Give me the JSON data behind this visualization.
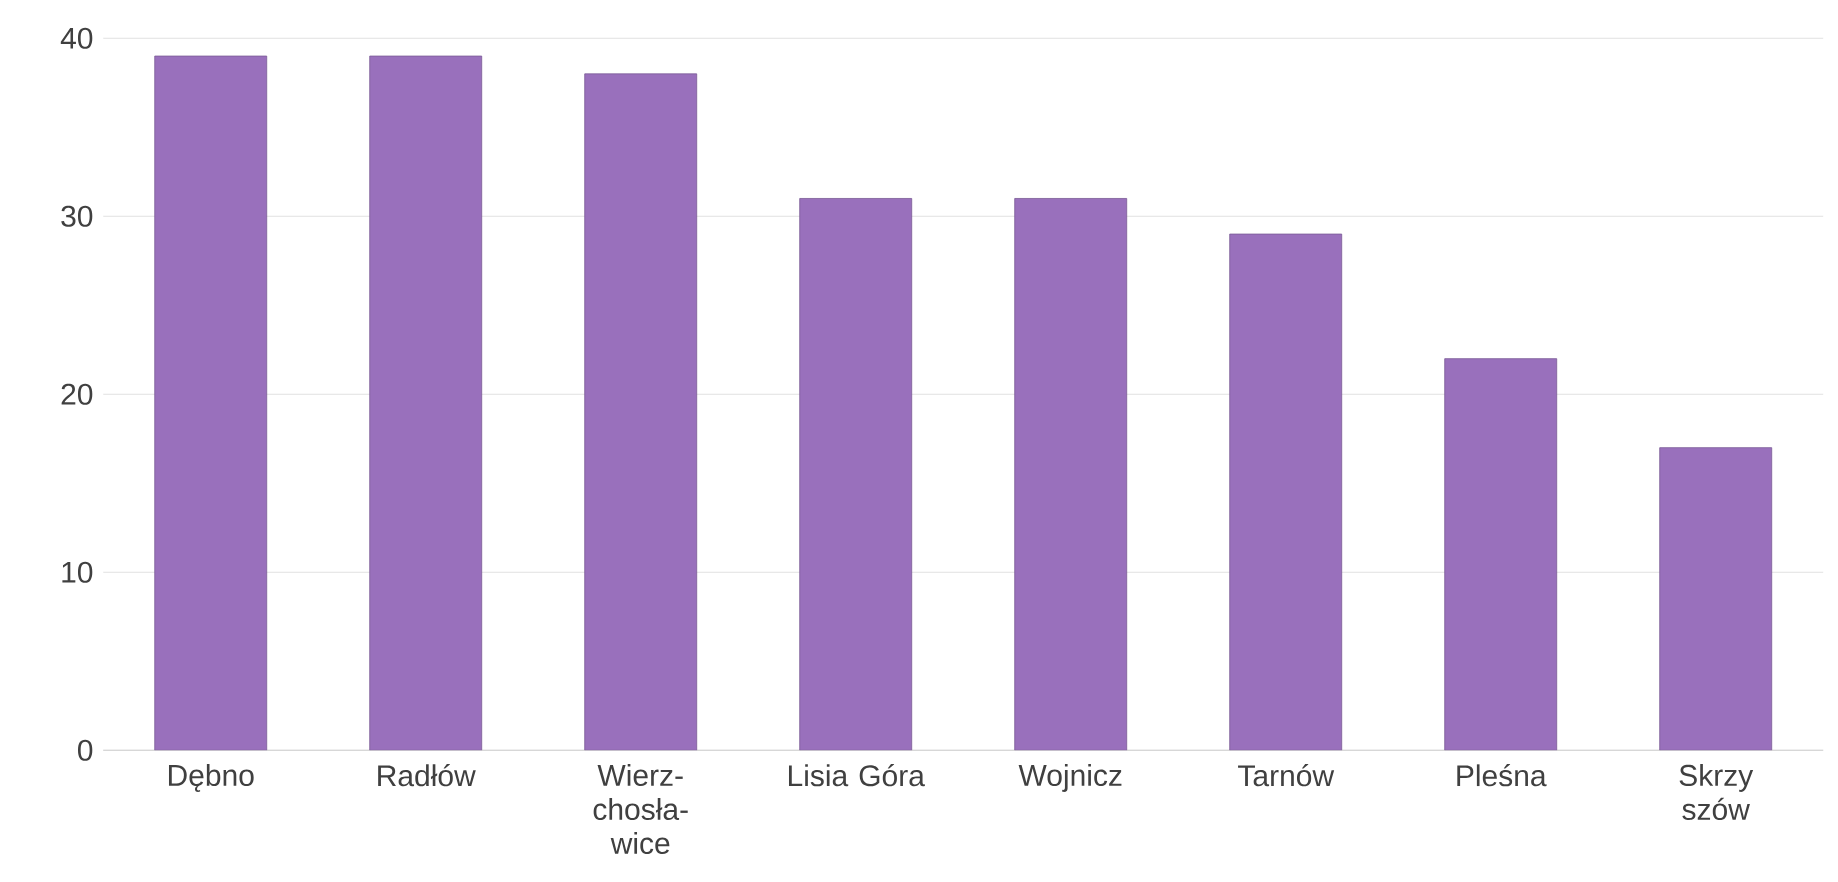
{
  "chart_data": {
    "type": "bar",
    "categories": [
      "Dębno",
      "Radłów",
      "Wierz- chosła- wice",
      "Lisia Góra",
      "Wojnicz",
      "Tarnów",
      "Pleśna",
      "Skrzy szów"
    ],
    "values": [
      39,
      39,
      38,
      31,
      31,
      29,
      22,
      17
    ],
    "color": "#9970bc",
    "ylim": [
      0,
      40
    ],
    "yticks": [
      0,
      10,
      20,
      30,
      40
    ],
    "grid": "y"
  }
}
